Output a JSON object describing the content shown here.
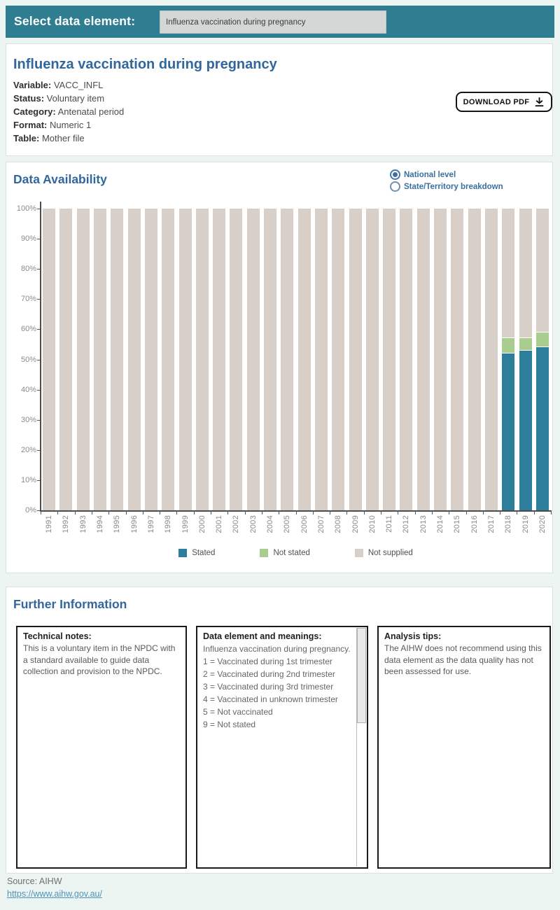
{
  "header": {
    "label": "Select data element:",
    "selected_value": "Influenza vaccination during pregnancy"
  },
  "element_info": {
    "title": "Influenza vaccination during pregnancy",
    "fields": [
      {
        "label": "Variable:",
        "value": "VACC_INFL"
      },
      {
        "label": "Status:",
        "value": "Voluntary item"
      },
      {
        "label": "Category:",
        "value": "Antenatal period"
      },
      {
        "label": "Format:",
        "value": "Numeric 1"
      },
      {
        "label": "Table:",
        "value": "Mother file"
      }
    ],
    "download_button": "DOWNLOAD PDF"
  },
  "availability": {
    "title": "Data Availability",
    "radios": [
      {
        "label": "National level",
        "selected": true
      },
      {
        "label": "State/Territory breakdown",
        "selected": false
      }
    ]
  },
  "chart_data": {
    "type": "bar",
    "stacked": true,
    "title": "Data Availability",
    "xlabel": "",
    "ylabel": "",
    "ylim": [
      0,
      100
    ],
    "gridlines": false,
    "legend_position": "bottom",
    "yticks": [
      "0%",
      "10%",
      "20%",
      "30%",
      "40%",
      "50%",
      "60%",
      "70%",
      "80%",
      "90%",
      "100%"
    ],
    "categories": [
      "1991",
      "1992",
      "1993",
      "1994",
      "1995",
      "1996",
      "1997",
      "1998",
      "1999",
      "2000",
      "2001",
      "2002",
      "2003",
      "2004",
      "2005",
      "2006",
      "2007",
      "2008",
      "2009",
      "2010",
      "2011",
      "2012",
      "2013",
      "2014",
      "2015",
      "2016",
      "2017",
      "2018",
      "2019",
      "2020"
    ],
    "series": [
      {
        "name": "Stated",
        "color": "#2d7e9a",
        "values": [
          0,
          0,
          0,
          0,
          0,
          0,
          0,
          0,
          0,
          0,
          0,
          0,
          0,
          0,
          0,
          0,
          0,
          0,
          0,
          0,
          0,
          0,
          0,
          0,
          0,
          0,
          0,
          52,
          53,
          54
        ]
      },
      {
        "name": "Not stated",
        "color": "#a8cd8e",
        "values": [
          0,
          0,
          0,
          0,
          0,
          0,
          0,
          0,
          0,
          0,
          0,
          0,
          0,
          0,
          0,
          0,
          0,
          0,
          0,
          0,
          0,
          0,
          0,
          0,
          0,
          0,
          0,
          5,
          4,
          5
        ]
      },
      {
        "name": "Not supplied",
        "color": "#d9cfc9",
        "values": [
          100,
          100,
          100,
          100,
          100,
          100,
          100,
          100,
          100,
          100,
          100,
          100,
          100,
          100,
          100,
          100,
          100,
          100,
          100,
          100,
          100,
          100,
          100,
          100,
          100,
          100,
          100,
          43,
          43,
          41
        ]
      }
    ]
  },
  "further_info": {
    "title": "Further Information",
    "boxes": [
      {
        "heading": "Technical notes:",
        "slug": "technical-notes",
        "scrollbar": false,
        "lines": [
          "This is a voluntary item in the NPDC with a standard available to guide data collection and provision to the NPDC."
        ]
      },
      {
        "heading": "Data element and meanings:",
        "slug": "data-element-and-meanings",
        "scrollbar": true,
        "lines": [
          "Influenza vaccination during pregnancy.",
          "1 = Vaccinated during 1st trimester",
          "2 = Vaccinated during 2nd trimester",
          "3 = Vaccinated during 3rd trimester",
          "4 = Vaccinated in unknown trimester",
          "5 = Not vaccinated",
          "9 = Not stated"
        ]
      },
      {
        "heading": "Analysis tips:",
        "slug": "analysis-tips",
        "scrollbar": false,
        "lines": [
          "The AIHW does not recommend using this data element as the data quality has not been assessed for use."
        ]
      }
    ]
  },
  "footer": {
    "source": "Source: AIHW",
    "link": "https://www.aihw.gov.au/"
  },
  "colors": {
    "header_bar": "#2e7d90",
    "page_background": "#ecf5f2",
    "title_blue": "#31679c",
    "stated": "#2d7e9a",
    "not_stated": "#a8cd8e",
    "not_supplied": "#d9cfc9",
    "radio_blue": "#3c6f9f",
    "link": "#4f93bc"
  }
}
